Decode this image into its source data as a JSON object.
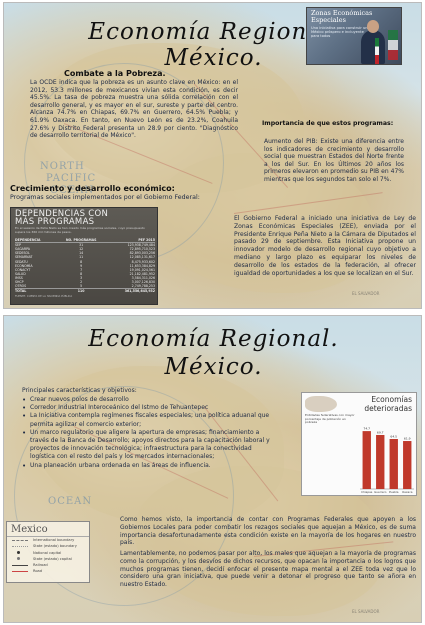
{
  "page1": {
    "title_line1": "Economía Regional.",
    "title_line2": "México.",
    "photo": {
      "title_line1": "Zonas Económicas",
      "title_line2": "Especiales",
      "subtitle": "Una iniciativa para construir un México próspero e incluyente para todos"
    },
    "section_poverty": {
      "heading": "Combate a la Pobreza.",
      "text": "La OCDE indica que la pobreza es un asunto clave en México: en el 2012, 53.3 millones de mexicanos vivían esta condición, es decir 45.5%. La tasa de pobreza muestra una sólida correlación con el desarrollo general, y es mayor en el sur, sureste y parte del centro. Alcanza 74.7% en Chiapas, 69.7% en Guerrero, 64.5% Puebla; y 61.9% Oaxaca. En tanto, en Nuevo León es de 23.2%, Coahuila 27.6% y Distrito Federal presenta un 28.9 por ciento. \"Diagnóstico de desarrollo territorial de México\"."
    },
    "section_programs": {
      "heading": "Importancia de que estos programas:",
      "text": "Aumento del PIB: Existe una diferencia entre los indicadores de crecimiento y desarrollo social que muestran Estados del Norte frente a los del Sur. En los Últimos 20 años los primeros elevaron en promedio su PIB en 47% mientras que los segundos tan solo el 7%."
    },
    "section_growth": {
      "heading": "Crecimiento y desarrollo económico:",
      "text": "Programas sociales implementados por el Gobierno Federal:"
    },
    "table": {
      "title_line1": "DEPENDENCIAS CON",
      "title_line2": "MÁS PROGRAMAS",
      "description": "En el sexenio de Peña Nieto se han creado más programas sociales, cuyo presupuesto supera los 360 mil millones de pesos.",
      "headers": [
        "DEPENDENCIA",
        "NO. PROGRAMAS",
        "PEF 2015"
      ],
      "rows": [
        [
          "SEP",
          "31",
          "123,938,749,484"
        ],
        [
          "SAGARPA",
          "12",
          "72,895,710,523"
        ],
        [
          "SEDESOL",
          "14",
          "82,893,003,256"
        ],
        [
          "SEMARNAT",
          "11",
          "12,085,131,617"
        ],
        [
          "SEDATU",
          "8",
          "8,475,933,602"
        ],
        [
          "ECONOMÍA",
          "9",
          "11,653,384,829"
        ],
        [
          "CONACYT",
          "7",
          "19,091,024,561"
        ],
        [
          "SALUD",
          "8",
          "21,182,481,952"
        ],
        [
          "IMSS",
          "3",
          "3,584,311,026"
        ],
        [
          "SHCP",
          "2",
          "3,007,126,830"
        ],
        [
          "OTROS",
          "5",
          "2,749,788,253"
        ]
      ],
      "total": [
        "TOTAL",
        "110",
        "361,556,645,932"
      ],
      "footer": "FUENTE: CUENTA DE LA HACIENDA PÚBLICA"
    },
    "section_zee": {
      "text": "El Gobierno Federal a iniciado una iniciativa de Ley de Zonas Económicas Especiales (ZEE), enviada por el Presidente Enrique Peña Nieto a la Cámara de Diputados el pasado 29 de septiembre. Esta Iniciativa propone un innovador modelo de desarrollo regional cuyo objetivo a mediano y largo plazo es equiparar los niveles de desarrollo de los estados de la federación, al ofrecer igualdad de oportunidades a los que se localizan en el Sur."
    },
    "map_labels": [
      "NORTH",
      "PACIFIC",
      "OCEAN",
      "EL SALVADOR"
    ]
  },
  "page2": {
    "title_line1": "Economía Regional.",
    "title_line2": "México.",
    "features_heading": "Principales características y objetivos:",
    "features": [
      "Crear nuevos polos de desarrollo",
      "Corredor Industrial Interoceánico del Istmo de Tehuantepec",
      "La Iniciativa contempla regímenes fiscales especiales; una política aduanal que permita agilizar el comercio exterior;",
      "Un marco regulatorio que aligere la apertura de empresas; financiamiento a través de la Banca de Desarrollo; apoyos directos para la capacitación laboral y proyectos de innovación tecnológica; infraestructura para la conectividad logística con el resto del país y los mercados internacionales;",
      "Una planeación urbana ordenada en las áreas de influencia."
    ],
    "chart": {
      "title_line1": "Economías",
      "title_line2": "deterioradas",
      "caption": "Entidades federativas con mayor porcentaje de población en pobreza"
    },
    "legend": {
      "title": "Mexico",
      "items": [
        "International boundary",
        "State (estado) boundary",
        "National capital",
        "State (estado) capital",
        "Railroad",
        "Road"
      ]
    },
    "conclusion_p1": "Como hemos visto, la importancia de contar con Programas Federales que apoyen a los Gobiernos Locales para poder combatir los rezagos sociales que aquejan a México, es de suma importancia desafortunadamente esta condición existe en la mayoría de los hogares en nuestro país.",
    "conclusion_p2": "Lamentablemente, no podemos pasar por alto, los males que aquejan a la mayoría de programas como la corrupción, y los desvíos de dichos recursos, que opacan la importancia o los logros que muchos programas tienen, decidí enfocar el presente mapa mental a el ZEE toda vez que lo considero una gran iniciativa, que puede venir a detonar el progreso que tanto se añora en nuestro Estado.",
    "map_labels": [
      "OCEAN",
      "EL SALVADOR"
    ]
  },
  "chart_data": {
    "type": "bar",
    "title": "Economías deterioradas",
    "subtitle": "Entidades federativas con mayor porcentaje de población en pobreza",
    "categories": [
      "Chiapas",
      "Guerrero",
      "Puebla",
      "Oaxaca"
    ],
    "values": [
      74.7,
      69.7,
      64.5,
      61.9
    ],
    "ylabel": "",
    "ylim": [
      0,
      80
    ],
    "colors": [
      "#c0392b"
    ]
  }
}
